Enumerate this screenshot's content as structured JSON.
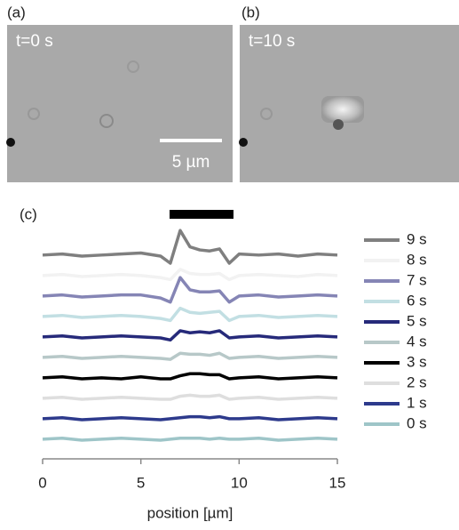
{
  "panels": [
    {
      "label": "(a)",
      "caption": "t=0 s",
      "scale_bar": "5 µm"
    },
    {
      "label": "(b)",
      "caption": "t=10 s"
    }
  ],
  "chart_data": {
    "type": "line",
    "label": "(c)",
    "xlabel": "position [µm]",
    "x": [
      0,
      1,
      2,
      3,
      4,
      5,
      6,
      6.5,
      7,
      7.5,
      8,
      8.5,
      9,
      9.5,
      10,
      11,
      12,
      13,
      14,
      15
    ],
    "xlim": [
      0,
      15
    ],
    "xticks": [
      0,
      5,
      10,
      15
    ],
    "ylim": [
      -0.7,
      10.6
    ],
    "legend": "right",
    "series": [
      {
        "name": "9 s",
        "color": "#7f7f7f",
        "values": [
          9,
          9.05,
          8.95,
          9,
          9.05,
          9.1,
          8.95,
          8.6,
          10.2,
          9.4,
          9.25,
          9.2,
          9.3,
          8.6,
          9.05,
          9,
          9.05,
          8.95,
          9.05,
          9
        ]
      },
      {
        "name": "8 s",
        "color": "#f2f2f2",
        "values": [
          8,
          8.05,
          7.95,
          8,
          8.05,
          8,
          7.9,
          7.8,
          8.3,
          8.1,
          8.05,
          8.05,
          8.1,
          7.8,
          8,
          8.05,
          8,
          7.95,
          8.05,
          8
        ]
      },
      {
        "name": "7 s",
        "color": "#8585b5",
        "values": [
          7,
          7.05,
          6.95,
          7,
          7.05,
          7.05,
          6.9,
          6.7,
          7.9,
          7.3,
          7.2,
          7.2,
          7.25,
          6.7,
          7,
          7.05,
          6.95,
          7,
          7.05,
          7
        ]
      },
      {
        "name": "6 s",
        "color": "#c2dfe3",
        "values": [
          6,
          6.05,
          5.95,
          6,
          6.05,
          6,
          5.9,
          5.8,
          6.4,
          6.2,
          6.15,
          6.2,
          6.25,
          5.8,
          6,
          6.05,
          5.95,
          6,
          6.05,
          6
        ]
      },
      {
        "name": "5 s",
        "color": "#262a7a",
        "values": [
          5,
          5.05,
          4.95,
          5,
          5.05,
          5,
          4.95,
          4.85,
          5.3,
          5.2,
          5.25,
          5.2,
          5.3,
          4.95,
          5,
          5.05,
          4.95,
          5,
          5.05,
          5
        ]
      },
      {
        "name": "4 s",
        "color": "#b7c8c8",
        "values": [
          4,
          4.05,
          3.95,
          4,
          4.05,
          4,
          3.95,
          3.9,
          4.2,
          4.15,
          4.15,
          4.1,
          4.2,
          3.95,
          4,
          4.05,
          3.95,
          4,
          4.05,
          4
        ]
      },
      {
        "name": "3 s",
        "color": "#000000",
        "values": [
          3,
          3.05,
          2.95,
          3,
          2.95,
          3.05,
          2.95,
          2.95,
          3.1,
          3.2,
          3.2,
          3.15,
          3.15,
          2.95,
          3,
          3.05,
          2.95,
          3,
          3.05,
          3
        ]
      },
      {
        "name": "2 s",
        "color": "#dedede",
        "values": [
          2,
          2.05,
          1.95,
          2,
          2.05,
          2,
          1.95,
          1.95,
          2.1,
          2.15,
          2.1,
          2.1,
          2.15,
          1.95,
          2,
          2.05,
          1.95,
          2,
          2.05,
          2
        ]
      },
      {
        "name": "1 s",
        "color": "#2d3a8c",
        "values": [
          1,
          1.05,
          0.95,
          1,
          1.05,
          1,
          0.95,
          1,
          1.05,
          1.1,
          1.1,
          1.05,
          1.1,
          1,
          1,
          1.05,
          0.95,
          1,
          1.05,
          1
        ]
      },
      {
        "name": "0 s",
        "color": "#9ec5c8",
        "values": [
          0,
          0.05,
          -0.05,
          0,
          0.05,
          0,
          -0.05,
          0,
          0.05,
          0.05,
          0.05,
          0,
          0.05,
          0,
          0,
          0.05,
          -0.05,
          0,
          0.05,
          0
        ]
      }
    ]
  }
}
